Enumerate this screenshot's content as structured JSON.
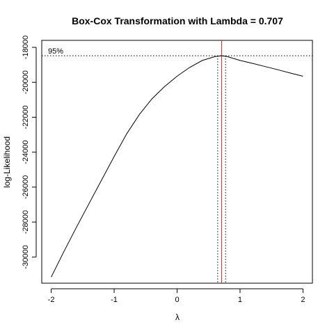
{
  "chart_data": {
    "type": "line",
    "title": "Box-Cox Transformation with Lambda = 0.707",
    "xlabel": "λ",
    "ylabel": "log-Likelihood",
    "xlim": [
      -2.15,
      2.15
    ],
    "ylim": [
      -31500,
      -17600
    ],
    "x_ticks": [
      -2,
      -1,
      0,
      1,
      2
    ],
    "x_tick_labels": [
      "-2",
      "-1",
      "0",
      "1",
      "2"
    ],
    "y_ticks": [
      -30000,
      -28000,
      -26000,
      -24000,
      -22000,
      -20000,
      -18000
    ],
    "y_tick_labels": [
      "-30000",
      "-28000",
      "-26000",
      "-24000",
      "-22000",
      "-20000",
      "-18000"
    ],
    "series": [
      {
        "x": [
          -2.0,
          -1.8,
          -1.6,
          -1.4,
          -1.2,
          -1.0,
          -0.8,
          -0.6,
          -0.4,
          -0.2,
          0.0,
          0.2,
          0.4,
          0.6,
          0.707,
          0.8,
          1.0,
          1.2,
          1.4,
          1.6,
          1.8,
          2.0
        ],
        "y": [
          -31150,
          -29700,
          -28300,
          -26950,
          -25600,
          -24250,
          -22950,
          -21850,
          -20950,
          -20250,
          -19650,
          -19150,
          -18750,
          -18530,
          -18480,
          -18530,
          -18750,
          -18920,
          -19100,
          -19280,
          -19470,
          -19650
        ]
      }
    ],
    "lambda_hat": 0.707,
    "ci_lambda": [
      0.645,
      0.77
    ],
    "ci95_loglik": -18480,
    "annotation": "95%",
    "colors": {
      "curve": "#000000",
      "lambda_line": "#e8231c",
      "ci_lines": "#000000",
      "frame": "#000000"
    },
    "grid": false
  }
}
